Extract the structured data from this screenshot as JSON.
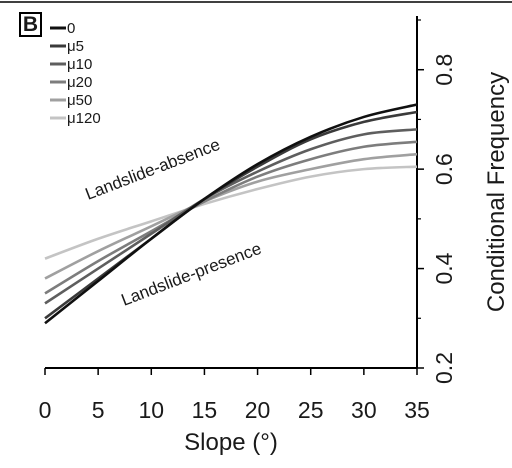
{
  "chart_data": {
    "type": "line",
    "panel_label": "B",
    "xlabel": "Slope (°)",
    "ylabel": "Conditional Frequency",
    "xlim": [
      0,
      35
    ],
    "ylim": [
      0.2,
      0.9
    ],
    "x_ticks": [
      0,
      5,
      10,
      15,
      20,
      25,
      30,
      35
    ],
    "y_ticks": [
      0.2,
      0.4,
      0.6,
      0.8
    ],
    "grid": false,
    "legend_position": "top-left",
    "annotations": [
      "Landslide-absence",
      "Landslide-presence"
    ],
    "x": [
      0,
      5,
      10,
      15,
      20,
      25,
      30,
      35
    ],
    "series": [
      {
        "name": "0",
        "color": "#101010",
        "values": [
          0.29,
          0.375,
          0.46,
          0.54,
          0.61,
          0.665,
          0.705,
          0.73
        ]
      },
      {
        "name": "μ5",
        "color": "#3a3a3a",
        "values": [
          0.3,
          0.38,
          0.46,
          0.54,
          0.605,
          0.66,
          0.695,
          0.715
        ]
      },
      {
        "name": "μ10",
        "color": "#5e5e5e",
        "values": [
          0.33,
          0.4,
          0.47,
          0.54,
          0.595,
          0.64,
          0.67,
          0.68
        ]
      },
      {
        "name": "μ20",
        "color": "#7d7d7d",
        "values": [
          0.35,
          0.415,
          0.475,
          0.535,
          0.585,
          0.62,
          0.645,
          0.655
        ]
      },
      {
        "name": "μ50",
        "color": "#a0a0a0",
        "values": [
          0.38,
          0.435,
          0.485,
          0.535,
          0.575,
          0.6,
          0.62,
          0.63
        ]
      },
      {
        "name": "μ120",
        "color": "#c4c4c4",
        "values": [
          0.42,
          0.46,
          0.495,
          0.53,
          0.56,
          0.585,
          0.6,
          0.605
        ]
      }
    ]
  }
}
